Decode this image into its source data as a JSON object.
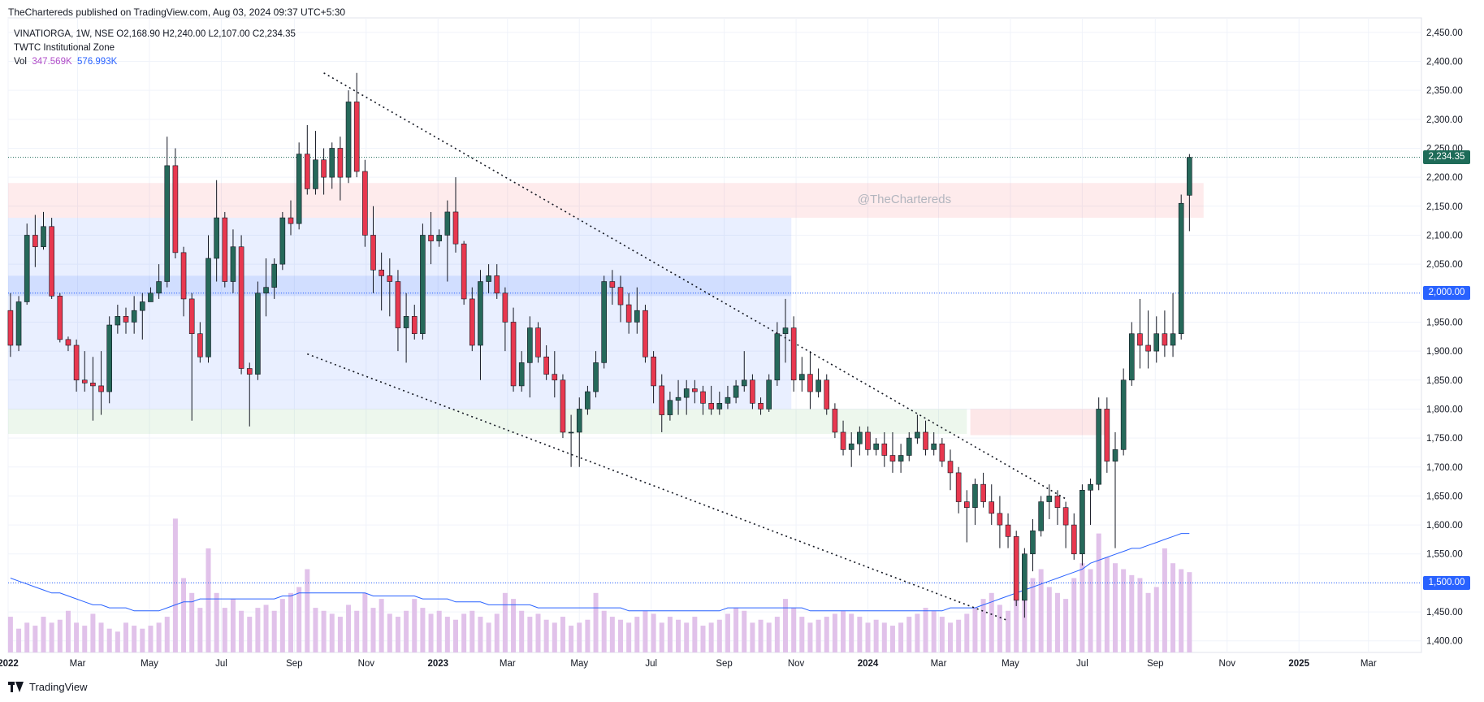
{
  "header": {
    "published_line": "TheChartereds published on TradingView.com, Aug 03, 2024 09:37 UTC+5:30"
  },
  "legend": {
    "symbol_line": "VINATIORGA, 1W, NSE  O2,168.90  H2,240.00  L2,107.00  C2,234.35",
    "indicator_line": "TWTC Institutional Zone",
    "vol_label": "Vol",
    "vol_value": "347.569K",
    "vol_ma_value": "576.993K"
  },
  "watermark": "@TheChartereds",
  "footer": {
    "brand": "TradingView"
  },
  "price_tags": {
    "last": "2,234.35",
    "level_2000": "2,000.00",
    "level_1500": "1,500.00"
  },
  "colors": {
    "up": "#26695a",
    "down": "#e8384f",
    "volume": "#e1c2ea",
    "volume_ma": "#2962ff",
    "last_tag": "#1e6b58",
    "level_tag": "#2962ff"
  },
  "chart_data": {
    "type": "candlestick",
    "symbol": "VINATIORGA",
    "timeframe": "1W",
    "exchange": "NSE",
    "x_tick_labels": [
      "2022",
      "Mar",
      "May",
      "Jul",
      "Sep",
      "Nov",
      "2023",
      "Mar",
      "May",
      "Jul",
      "Sep",
      "Nov",
      "2024",
      "Mar",
      "May",
      "Jul",
      "Sep",
      "Nov",
      "2025",
      "Mar"
    ],
    "y_tick_labels": [
      "2,450.00",
      "2,400.00",
      "2,350.00",
      "2,300.00",
      "2,250.00",
      "2,200.00",
      "2,150.00",
      "2,100.00",
      "2,050.00",
      "2,000.00",
      "1,950.00",
      "1,900.00",
      "1,850.00",
      "1,800.00",
      "1,750.00",
      "1,700.00",
      "1,650.00",
      "1,600.00",
      "1,550.00",
      "1,500.00",
      "1,450.00",
      "1,400.00"
    ],
    "ylim": [
      1380,
      2475
    ],
    "x_domain": [
      "2022-01-01",
      "2025-04-15"
    ],
    "horizontal_levels": [
      2234.35,
      2000,
      1500
    ],
    "candles": [
      [
        "2022-01-03",
        1970,
        2000,
        1890,
        1910
      ],
      [
        "2022-01-10",
        1910,
        1995,
        1900,
        1985
      ],
      [
        "2022-01-17",
        1985,
        2120,
        1980,
        2100
      ],
      [
        "2022-01-24",
        2100,
        2135,
        2045,
        2080
      ],
      [
        "2022-01-31",
        2080,
        2140,
        2075,
        2115
      ],
      [
        "2022-02-07",
        2115,
        2130,
        1990,
        1995
      ],
      [
        "2022-02-14",
        1995,
        2000,
        1915,
        1920
      ],
      [
        "2022-02-21",
        1920,
        1925,
        1900,
        1910
      ],
      [
        "2022-02-28",
        1910,
        1920,
        1830,
        1850
      ],
      [
        "2022-03-07",
        1850,
        1900,
        1830,
        1845
      ],
      [
        "2022-03-14",
        1845,
        1890,
        1780,
        1840
      ],
      [
        "2022-03-21",
        1840,
        1900,
        1790,
        1830
      ],
      [
        "2022-03-28",
        1830,
        1960,
        1810,
        1945
      ],
      [
        "2022-04-04",
        1945,
        1980,
        1930,
        1960
      ],
      [
        "2022-04-11",
        1960,
        1975,
        1930,
        1950
      ],
      [
        "2022-04-18",
        1950,
        1995,
        1930,
        1970
      ],
      [
        "2022-04-25",
        1970,
        2000,
        1920,
        1985
      ],
      [
        "2022-05-02",
        1985,
        2010,
        1985,
        2000
      ],
      [
        "2022-05-09",
        2000,
        2050,
        1990,
        2020
      ],
      [
        "2022-05-16",
        2020,
        2270,
        2010,
        2220
      ],
      [
        "2022-05-23",
        2220,
        2250,
        2060,
        2070
      ],
      [
        "2022-05-30",
        2070,
        2080,
        1960,
        1990
      ],
      [
        "2022-06-06",
        1990,
        2000,
        1780,
        1930
      ],
      [
        "2022-06-13",
        1930,
        1950,
        1880,
        1890
      ],
      [
        "2022-06-20",
        1890,
        2100,
        1880,
        2060
      ],
      [
        "2022-06-27",
        2060,
        2195,
        2020,
        2130
      ],
      [
        "2022-07-04",
        2130,
        2140,
        2010,
        2020
      ],
      [
        "2022-07-11",
        2020,
        2110,
        2000,
        2080
      ],
      [
        "2022-07-18",
        2080,
        2100,
        1860,
        1870
      ],
      [
        "2022-07-25",
        1870,
        1880,
        1770,
        1860
      ],
      [
        "2022-08-01",
        1860,
        2020,
        1850,
        2000
      ],
      [
        "2022-08-08",
        2000,
        2060,
        1960,
        2010
      ],
      [
        "2022-08-15",
        2010,
        2060,
        1990,
        2050
      ],
      [
        "2022-08-22",
        2050,
        2140,
        2040,
        2130
      ],
      [
        "2022-08-29",
        2130,
        2160,
        2100,
        2120
      ],
      [
        "2022-09-05",
        2120,
        2260,
        2110,
        2240
      ],
      [
        "2022-09-12",
        2240,
        2290,
        2170,
        2180
      ],
      [
        "2022-09-19",
        2180,
        2280,
        2170,
        2230
      ],
      [
        "2022-09-26",
        2230,
        2250,
        2170,
        2200
      ],
      [
        "2022-10-03",
        2200,
        2260,
        2180,
        2250
      ],
      [
        "2022-10-10",
        2250,
        2270,
        2160,
        2200
      ],
      [
        "2022-10-17",
        2200,
        2350,
        2190,
        2330
      ],
      [
        "2022-10-24",
        2330,
        2380,
        2200,
        2210
      ],
      [
        "2022-10-31",
        2210,
        2230,
        2080,
        2100
      ],
      [
        "2022-11-07",
        2100,
        2150,
        2000,
        2040
      ],
      [
        "2022-11-14",
        2040,
        2070,
        1970,
        2030
      ],
      [
        "2022-11-21",
        2030,
        2060,
        1960,
        2020
      ],
      [
        "2022-11-28",
        2020,
        2040,
        1900,
        1940
      ],
      [
        "2022-12-05",
        1940,
        2000,
        1880,
        1960
      ],
      [
        "2022-12-12",
        1960,
        1980,
        1920,
        1930
      ],
      [
        "2022-12-19",
        1930,
        2120,
        1920,
        2100
      ],
      [
        "2022-12-26",
        2100,
        2140,
        2050,
        2090
      ],
      [
        "2023-01-02",
        2090,
        2110,
        2080,
        2100
      ],
      [
        "2023-01-09",
        2100,
        2160,
        2020,
        2140
      ],
      [
        "2023-01-16",
        2140,
        2200,
        2070,
        2085
      ],
      [
        "2023-01-23",
        2085,
        2090,
        1980,
        1990
      ],
      [
        "2023-01-30",
        1990,
        2010,
        1900,
        1910
      ],
      [
        "2023-02-06",
        1910,
        2040,
        1850,
        2020
      ],
      [
        "2023-02-13",
        2020,
        2050,
        2000,
        2030
      ],
      [
        "2023-02-20",
        2030,
        2050,
        1990,
        2000
      ],
      [
        "2023-02-27",
        2000,
        2010,
        1900,
        1950
      ],
      [
        "2023-03-06",
        1950,
        1975,
        1830,
        1840
      ],
      [
        "2023-03-13",
        1840,
        1900,
        1830,
        1880
      ],
      [
        "2023-03-20",
        1880,
        1960,
        1820,
        1940
      ],
      [
        "2023-03-27",
        1940,
        1950,
        1880,
        1890
      ],
      [
        "2023-04-03",
        1890,
        1910,
        1850,
        1860
      ],
      [
        "2023-04-10",
        1860,
        1900,
        1820,
        1850
      ],
      [
        "2023-04-17",
        1850,
        1860,
        1750,
        1760
      ],
      [
        "2023-04-24",
        1760,
        1790,
        1700,
        1760
      ],
      [
        "2023-05-01",
        1760,
        1820,
        1700,
        1800
      ],
      [
        "2023-05-08",
        1800,
        1840,
        1790,
        1830
      ],
      [
        "2023-05-15",
        1830,
        1900,
        1820,
        1880
      ],
      [
        "2023-05-22",
        1880,
        2030,
        1870,
        2020
      ],
      [
        "2023-05-29",
        2020,
        2040,
        1980,
        2010
      ],
      [
        "2023-06-05",
        2010,
        2030,
        1950,
        1980
      ],
      [
        "2023-06-12",
        1980,
        2000,
        1930,
        1950
      ],
      [
        "2023-06-19",
        1950,
        2010,
        1930,
        1970
      ],
      [
        "2023-06-26",
        1970,
        1980,
        1880,
        1890
      ],
      [
        "2023-07-03",
        1890,
        1900,
        1810,
        1840
      ],
      [
        "2023-07-10",
        1840,
        1860,
        1760,
        1790
      ],
      [
        "2023-07-17",
        1790,
        1830,
        1780,
        1815
      ],
      [
        "2023-07-24",
        1815,
        1850,
        1790,
        1820
      ],
      [
        "2023-07-31",
        1820,
        1850,
        1790,
        1835
      ],
      [
        "2023-08-07",
        1835,
        1850,
        1810,
        1830
      ],
      [
        "2023-08-14",
        1830,
        1840,
        1790,
        1810
      ],
      [
        "2023-08-21",
        1810,
        1840,
        1790,
        1800
      ],
      [
        "2023-08-28",
        1800,
        1830,
        1790,
        1810
      ],
      [
        "2023-09-04",
        1810,
        1840,
        1800,
        1820
      ],
      [
        "2023-09-11",
        1820,
        1850,
        1810,
        1840
      ],
      [
        "2023-09-18",
        1840,
        1900,
        1830,
        1850
      ],
      [
        "2023-09-25",
        1850,
        1860,
        1800,
        1810
      ],
      [
        "2023-10-02",
        1810,
        1820,
        1790,
        1800
      ],
      [
        "2023-10-09",
        1800,
        1860,
        1795,
        1850
      ],
      [
        "2023-10-16",
        1850,
        1950,
        1840,
        1930
      ],
      [
        "2023-10-23",
        1930,
        1990,
        1880,
        1940
      ],
      [
        "2023-10-30",
        1940,
        1960,
        1830,
        1850
      ],
      [
        "2023-11-06",
        1850,
        1890,
        1830,
        1860
      ],
      [
        "2023-11-13",
        1860,
        1900,
        1800,
        1830
      ],
      [
        "2023-11-20",
        1830,
        1870,
        1820,
        1850
      ],
      [
        "2023-11-27",
        1850,
        1860,
        1790,
        1800
      ],
      [
        "2023-12-04",
        1800,
        1810,
        1750,
        1760
      ],
      [
        "2023-12-11",
        1760,
        1780,
        1720,
        1730
      ],
      [
        "2023-12-18",
        1730,
        1760,
        1700,
        1740
      ],
      [
        "2023-12-25",
        1740,
        1770,
        1720,
        1760
      ],
      [
        "2024-01-01",
        1760,
        1770,
        1720,
        1730
      ],
      [
        "2024-01-08",
        1730,
        1750,
        1720,
        1740
      ],
      [
        "2024-01-15",
        1740,
        1760,
        1700,
        1720
      ],
      [
        "2024-01-22",
        1720,
        1760,
        1690,
        1710
      ],
      [
        "2024-01-29",
        1710,
        1740,
        1690,
        1720
      ],
      [
        "2024-02-05",
        1720,
        1760,
        1710,
        1750
      ],
      [
        "2024-02-12",
        1750,
        1790,
        1740,
        1760
      ],
      [
        "2024-02-19",
        1760,
        1780,
        1720,
        1730
      ],
      [
        "2024-02-26",
        1730,
        1760,
        1720,
        1740
      ],
      [
        "2024-03-04",
        1740,
        1750,
        1700,
        1710
      ],
      [
        "2024-03-11",
        1710,
        1730,
        1660,
        1690
      ],
      [
        "2024-03-18",
        1690,
        1700,
        1620,
        1640
      ],
      [
        "2024-03-25",
        1640,
        1660,
        1570,
        1630
      ],
      [
        "2024-04-01",
        1630,
        1680,
        1600,
        1670
      ],
      [
        "2024-04-08",
        1670,
        1690,
        1630,
        1640
      ],
      [
        "2024-04-15",
        1640,
        1670,
        1600,
        1620
      ],
      [
        "2024-04-22",
        1620,
        1650,
        1560,
        1600
      ],
      [
        "2024-04-29",
        1600,
        1620,
        1560,
        1580
      ],
      [
        "2024-05-06",
        1580,
        1590,
        1460,
        1470
      ],
      [
        "2024-05-13",
        1470,
        1560,
        1440,
        1550
      ],
      [
        "2024-05-20",
        1550,
        1610,
        1520,
        1590
      ],
      [
        "2024-05-27",
        1590,
        1650,
        1580,
        1640
      ],
      [
        "2024-06-03",
        1640,
        1670,
        1610,
        1650
      ],
      [
        "2024-06-10",
        1650,
        1660,
        1600,
        1630
      ],
      [
        "2024-06-17",
        1630,
        1640,
        1560,
        1600
      ],
      [
        "2024-06-24",
        1600,
        1620,
        1540,
        1550
      ],
      [
        "2024-07-01",
        1550,
        1670,
        1530,
        1660
      ],
      [
        "2024-07-08",
        1660,
        1680,
        1600,
        1670
      ],
      [
        "2024-07-15",
        1670,
        1820,
        1660,
        1800
      ],
      [
        "2024-07-22",
        1800,
        1820,
        1690,
        1710
      ],
      [
        "2024-07-29",
        1710,
        1760,
        1560,
        1730
      ],
      [
        "2024-08-05",
        1730,
        1870,
        1720,
        1850
      ],
      [
        "2024-08-12",
        1850,
        1950,
        1840,
        1930
      ],
      [
        "2024-08-19",
        1930,
        1990,
        1870,
        1910
      ],
      [
        "2024-08-26",
        1910,
        1970,
        1870,
        1900
      ],
      [
        "2024-09-02",
        1900,
        1960,
        1880,
        1930
      ],
      [
        "2024-09-09",
        1930,
        1970,
        1890,
        1910
      ],
      [
        "2024-09-16",
        1910,
        2000,
        1890,
        1930
      ],
      [
        "2024-09-23",
        1930,
        2170,
        1920,
        2155
      ],
      [
        "2024-09-30",
        2168.9,
        2240,
        2107,
        2234.35
      ]
    ],
    "volume_ma_max_label": "576.993K",
    "volume_last_label": "347.569K",
    "volume_relative": [
      0.12,
      0.08,
      0.1,
      0.09,
      0.12,
      0.1,
      0.11,
      0.14,
      0.1,
      0.09,
      0.13,
      0.1,
      0.08,
      0.07,
      0.1,
      0.09,
      0.08,
      0.09,
      0.1,
      0.12,
      0.45,
      0.25,
      0.2,
      0.15,
      0.35,
      0.2,
      0.15,
      0.18,
      0.14,
      0.12,
      0.15,
      0.16,
      0.14,
      0.18,
      0.2,
      0.22,
      0.28,
      0.15,
      0.14,
      0.13,
      0.12,
      0.16,
      0.14,
      0.2,
      0.15,
      0.18,
      0.13,
      0.12,
      0.14,
      0.18,
      0.15,
      0.13,
      0.14,
      0.12,
      0.11,
      0.13,
      0.14,
      0.12,
      0.1,
      0.13,
      0.2,
      0.18,
      0.14,
      0.12,
      0.13,
      0.11,
      0.1,
      0.12,
      0.09,
      0.1,
      0.11,
      0.2,
      0.14,
      0.12,
      0.11,
      0.1,
      0.12,
      0.14,
      0.13,
      0.1,
      0.12,
      0.11,
      0.1,
      0.12,
      0.09,
      0.1,
      0.11,
      0.13,
      0.15,
      0.14,
      0.1,
      0.11,
      0.1,
      0.12,
      0.18,
      0.15,
      0.12,
      0.1,
      0.11,
      0.12,
      0.13,
      0.14,
      0.13,
      0.12,
      0.1,
      0.11,
      0.1,
      0.09,
      0.1,
      0.12,
      0.13,
      0.15,
      0.14,
      0.12,
      0.1,
      0.11,
      0.13,
      0.15,
      0.18,
      0.2,
      0.16,
      0.14,
      0.22,
      0.19,
      0.25,
      0.28,
      0.22,
      0.2,
      0.18,
      0.25,
      0.3,
      0.28,
      0.4,
      0.32,
      0.3,
      0.28,
      0.26,
      0.25,
      0.2,
      0.22,
      0.35,
      0.3,
      0.28,
      0.27,
      0.22,
      0.25,
      0.18
    ],
    "volume_ma_relative": [
      0.25,
      0.24,
      0.23,
      0.22,
      0.21,
      0.2,
      0.2,
      0.19,
      0.18,
      0.17,
      0.16,
      0.16,
      0.15,
      0.15,
      0.15,
      0.14,
      0.14,
      0.14,
      0.14,
      0.15,
      0.16,
      0.17,
      0.17,
      0.18,
      0.18,
      0.18,
      0.18,
      0.18,
      0.18,
      0.18,
      0.18,
      0.18,
      0.18,
      0.19,
      0.19,
      0.2,
      0.2,
      0.2,
      0.2,
      0.2,
      0.2,
      0.2,
      0.2,
      0.2,
      0.19,
      0.19,
      0.19,
      0.19,
      0.19,
      0.19,
      0.18,
      0.18,
      0.18,
      0.18,
      0.17,
      0.17,
      0.17,
      0.17,
      0.16,
      0.16,
      0.16,
      0.16,
      0.16,
      0.16,
      0.15,
      0.15,
      0.15,
      0.15,
      0.15,
      0.15,
      0.15,
      0.15,
      0.15,
      0.15,
      0.15,
      0.14,
      0.14,
      0.14,
      0.14,
      0.14,
      0.14,
      0.14,
      0.14,
      0.14,
      0.14,
      0.14,
      0.14,
      0.15,
      0.15,
      0.15,
      0.15,
      0.15,
      0.15,
      0.15,
      0.15,
      0.15,
      0.15,
      0.14,
      0.14,
      0.14,
      0.14,
      0.14,
      0.14,
      0.14,
      0.14,
      0.14,
      0.14,
      0.14,
      0.14,
      0.14,
      0.14,
      0.14,
      0.14,
      0.14,
      0.15,
      0.15,
      0.15,
      0.15,
      0.16,
      0.17,
      0.18,
      0.19,
      0.2,
      0.21,
      0.22,
      0.23,
      0.24,
      0.25,
      0.26,
      0.27,
      0.28,
      0.3,
      0.31,
      0.32,
      0.33,
      0.34,
      0.35,
      0.35,
      0.36,
      0.37,
      0.38,
      0.39,
      0.4,
      0.4,
      0.41,
      0.41,
      0.41,
      0.42,
      0.42
    ]
  }
}
